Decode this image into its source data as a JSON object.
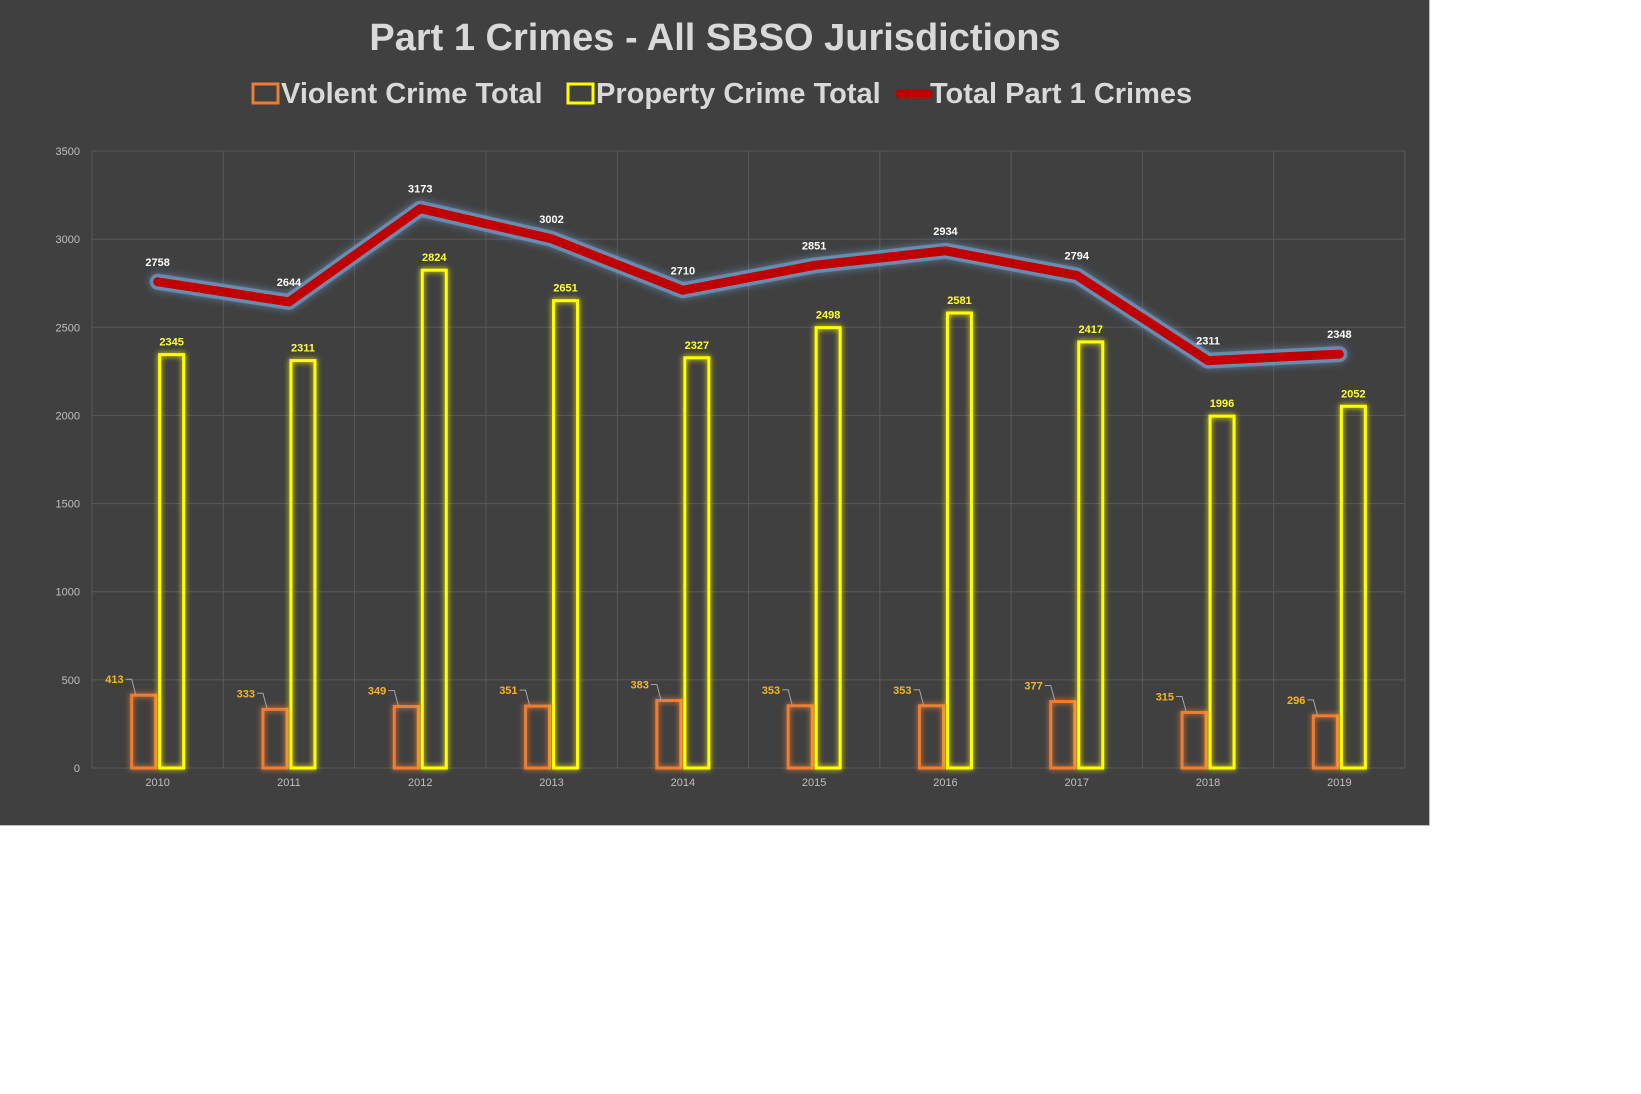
{
  "chart_data": {
    "type": "bar",
    "title": "Part 1 Crimes - All SBSO Jurisdictions",
    "xlabel": "",
    "ylabel": "",
    "ylim": [
      0,
      3500
    ],
    "yticks": [
      0,
      500,
      1000,
      1500,
      2000,
      2500,
      3000,
      3500
    ],
    "grid": true,
    "legend_position": "top",
    "categories": [
      "2010",
      "2011",
      "2012",
      "2013",
      "2014",
      "2015",
      "2016",
      "2017",
      "2018",
      "2019"
    ],
    "series": [
      {
        "name": "Violent Crime Total",
        "kind": "bar",
        "color": "#ed7d31",
        "values": [
          413,
          333,
          349,
          351,
          383,
          353,
          353,
          377,
          315,
          296
        ]
      },
      {
        "name": "Property Crime Total",
        "kind": "bar",
        "color": "#ffff00",
        "values": [
          2345,
          2311,
          2824,
          2651,
          2327,
          2498,
          2581,
          2417,
          1996,
          2052
        ]
      },
      {
        "name": "Total Part 1 Crimes",
        "kind": "line",
        "color": "#c00000",
        "values": [
          2758,
          2644,
          3173,
          3002,
          2710,
          2851,
          2934,
          2794,
          2311,
          2348
        ]
      }
    ]
  }
}
